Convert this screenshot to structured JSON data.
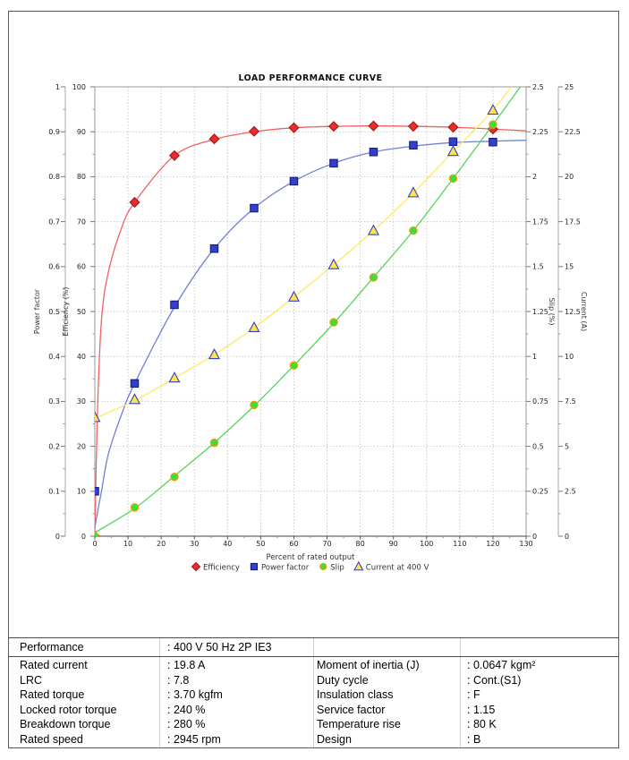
{
  "chart_data": {
    "type": "line",
    "title": "LOAD PERFORMANCE CURVE",
    "x_axis": {
      "title": "Percent of rated output",
      "min": 0,
      "max": 130,
      "tick_labels": [
        "0",
        "10",
        "20",
        "30",
        "40",
        "50",
        "60",
        "70",
        "80",
        "90",
        "100",
        "110",
        "120",
        "130"
      ]
    },
    "y_axes": {
      "power_factor": {
        "title": "Power factor",
        "min": 0,
        "max": 1,
        "tick_labels": [
          "0",
          "0.1",
          "0.2",
          "0.3",
          "0.4",
          "0.5",
          "0.6",
          "0.7",
          "0.8",
          "0.9",
          "1"
        ]
      },
      "efficiency": {
        "title": "Efficiency (%)",
        "min": 0,
        "max": 100,
        "tick_labels": [
          "0",
          "10",
          "20",
          "30",
          "40",
          "50",
          "60",
          "70",
          "80",
          "90",
          "100"
        ]
      },
      "slip": {
        "title": "Slip (%)",
        "min": 0,
        "max": 2.5,
        "tick_labels": [
          "0",
          "0.25",
          "0.5",
          "0.75",
          "1",
          "1.25",
          "1.5",
          "1.75",
          "2",
          "2.25",
          "2.5"
        ]
      },
      "current": {
        "title": "Current (A)",
        "min": 0,
        "max": 25,
        "tick_labels": [
          "0",
          "2.5",
          "5",
          "7.5",
          "10",
          "12.5",
          "15",
          "17.5",
          "20",
          "22.5",
          "25"
        ]
      }
    },
    "categories_x": [
      0,
      12,
      24,
      36,
      48,
      60,
      72,
      84,
      96,
      108,
      120
    ],
    "grid": true,
    "legend_position": "bottom",
    "series": [
      {
        "name": "Efficiency",
        "axis": "efficiency",
        "marker": "diamond",
        "line_color": "#f26060",
        "marker_fill": "#e62e2e",
        "marker_stroke": "#a81414",
        "values": [
          0,
          74.3,
          84.7,
          88.4,
          90.1,
          90.9,
          91.2,
          91.3,
          91.2,
          91.0,
          90.6
        ],
        "line_points": [
          [
            0,
            0.5
          ],
          [
            0.8,
            28
          ],
          [
            2,
            48
          ],
          [
            4,
            58.5
          ],
          [
            8,
            68.5
          ],
          [
            12,
            74.3
          ],
          [
            24,
            84.7
          ],
          [
            36,
            88.3
          ],
          [
            48,
            90.0
          ],
          [
            60,
            90.9
          ],
          [
            72,
            91.2
          ],
          [
            84,
            91.3
          ],
          [
            96,
            91.2
          ],
          [
            108,
            91.0
          ],
          [
            120,
            90.6
          ],
          [
            130,
            90.2
          ]
        ]
      },
      {
        "name": "Power factor",
        "axis": "power_factor",
        "marker": "square",
        "line_color": "#7080d8",
        "marker_fill": "#3340c8",
        "marker_stroke": "#161b7e",
        "values": [
          0.1,
          0.34,
          0.515,
          0.64,
          0.73,
          0.79,
          0.83,
          0.855,
          0.87,
          0.878,
          0.877
        ],
        "line_points": [
          [
            0,
            0.02
          ],
          [
            2,
            0.1
          ],
          [
            4,
            0.18
          ],
          [
            8,
            0.27
          ],
          [
            12,
            0.34
          ],
          [
            24,
            0.51
          ],
          [
            36,
            0.64
          ],
          [
            48,
            0.73
          ],
          [
            60,
            0.79
          ],
          [
            72,
            0.83
          ],
          [
            84,
            0.855
          ],
          [
            96,
            0.868
          ],
          [
            108,
            0.876
          ],
          [
            120,
            0.879
          ],
          [
            130,
            0.881
          ]
        ]
      },
      {
        "name": "Slip",
        "axis": "slip",
        "marker": "circle",
        "line_color": "#55d455",
        "marker_fill": "#3ddd3d",
        "marker_stroke": "#f0a000",
        "values": [
          0.0,
          0.16,
          0.33,
          0.52,
          0.73,
          0.95,
          1.19,
          1.44,
          1.7,
          1.99,
          2.29
        ],
        "line_points": [
          [
            0,
            0.02
          ],
          [
            12,
            0.155
          ],
          [
            24,
            0.335
          ],
          [
            36,
            0.52
          ],
          [
            48,
            0.725
          ],
          [
            60,
            0.95
          ],
          [
            72,
            1.185
          ],
          [
            84,
            1.44
          ],
          [
            96,
            1.7
          ],
          [
            108,
            1.99
          ],
          [
            120,
            2.29
          ],
          [
            130,
            2.545
          ]
        ]
      },
      {
        "name": "Current at 400 V",
        "axis": "current",
        "marker": "triangle",
        "line_color": "#ffe960",
        "marker_fill": "#ffe34d",
        "marker_stroke": "#3340c8",
        "values": [
          6.6,
          7.6,
          8.8,
          10.1,
          11.6,
          13.3,
          15.1,
          17.0,
          19.1,
          21.4,
          23.7
        ],
        "line_points": [
          [
            0,
            6.55
          ],
          [
            12,
            7.55
          ],
          [
            24,
            8.8
          ],
          [
            36,
            10.1
          ],
          [
            48,
            11.6
          ],
          [
            60,
            13.3
          ],
          [
            72,
            15.1
          ],
          [
            84,
            17.0
          ],
          [
            96,
            19.1
          ],
          [
            108,
            21.4
          ],
          [
            120,
            23.7
          ],
          [
            130,
            26.1
          ]
        ]
      }
    ]
  },
  "info_table": {
    "performance": {
      "label": "Performance",
      "value": ": 400 V 50 Hz 2P IE3"
    },
    "left_rows": [
      {
        "label": "Rated current",
        "value": ": 19.8 A"
      },
      {
        "label": "LRC",
        "value": ": 7.8"
      },
      {
        "label": "Rated torque",
        "value": ": 3.70 kgfm"
      },
      {
        "label": "Locked rotor torque",
        "value": ": 240 %"
      },
      {
        "label": "Breakdown torque",
        "value": ": 280 %"
      },
      {
        "label": "Rated speed",
        "value": ": 2945 rpm"
      }
    ],
    "right_rows": [
      {
        "label": "Moment of inertia (J)",
        "value": ": 0.0647 kgm²"
      },
      {
        "label": "Duty cycle",
        "value": ": Cont.(S1)"
      },
      {
        "label": "Insulation class",
        "value": ": F"
      },
      {
        "label": "Service factor",
        "value": ": 1.15"
      },
      {
        "label": "Temperature rise",
        "value": ": 80 K"
      },
      {
        "label": "Design",
        "value": ": B"
      }
    ]
  }
}
